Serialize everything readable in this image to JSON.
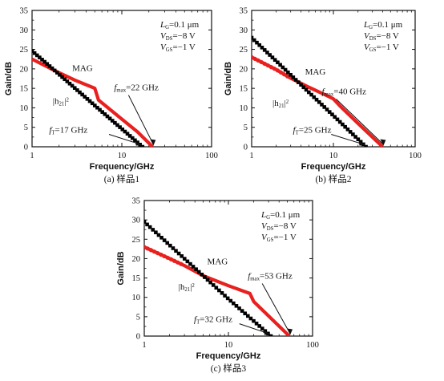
{
  "figure": {
    "subplot_count": 3,
    "series_colors": {
      "MAG": "#e8201e",
      "h21": "#000000"
    }
  },
  "chart_data": [
    {
      "type": "scatter",
      "caption": "(a) 样品1",
      "xlabel": "Frequency/GHz",
      "ylabel": "Gain/dB",
      "x_scale": "log",
      "xlim": [
        1,
        100
      ],
      "ylim": [
        0,
        35
      ],
      "x_ticks": [
        "1",
        "10",
        "100"
      ],
      "y_ticks": [
        "0",
        "5",
        "10",
        "15",
        "20",
        "25",
        "30",
        "35"
      ],
      "conditions": [
        "L_G=0.1 μm",
        "V_DS=−8 V",
        "V_GS=−1 V"
      ],
      "annotations": {
        "mag_label": "MAG",
        "h21_label": "|h21|²",
        "fmax": "f_max=22 GHz",
        "ft": "f_T=17 GHz"
      },
      "series": [
        {
          "name": "MAG",
          "color": "#e8201e",
          "style": "line",
          "x": [
            1,
            2,
            3,
            5,
            5.5,
            10,
            15,
            22
          ],
          "y": [
            22.5,
            19.0,
            17.1,
            15.0,
            12.0,
            7.1,
            3.8,
            0.0
          ]
        },
        {
          "name": "|h21|²",
          "color": "#000000",
          "style": "markers",
          "x": [
            1,
            2,
            5,
            10,
            17
          ],
          "y": [
            24.6,
            18.6,
            10.6,
            4.6,
            0.0
          ]
        }
      ]
    },
    {
      "type": "scatter",
      "caption": "(b) 样品2",
      "xlabel": "Frequency/GHz",
      "ylabel": "Gain/dB",
      "x_scale": "log",
      "xlim": [
        1,
        100
      ],
      "ylim": [
        0,
        35
      ],
      "x_ticks": [
        "1",
        "10",
        "100"
      ],
      "y_ticks": [
        "0",
        "5",
        "10",
        "15",
        "20",
        "25",
        "30",
        "35"
      ],
      "conditions": [
        "L_G=0.1 μm",
        "V_DS=−8 V",
        "V_GS=−1 V"
      ],
      "annotations": {
        "mag_label": "MAG",
        "h21_label": "|h21|²",
        "fmax": "f_max=40 GHz",
        "ft": "f_T=25 GHz"
      },
      "series": [
        {
          "name": "MAG",
          "color": "#e8201e",
          "style": "line",
          "x": [
            1,
            2,
            3,
            5,
            8,
            10,
            12,
            20,
            40
          ],
          "y": [
            23.0,
            19.8,
            17.6,
            15.3,
            13.3,
            12.3,
            10.5,
            6.0,
            0.0
          ]
        },
        {
          "name": "|h21|²",
          "color": "#000000",
          "style": "markers",
          "x": [
            1,
            2,
            5,
            10,
            25
          ],
          "y": [
            28.0,
            22.0,
            14.0,
            8.0,
            0.0
          ]
        }
      ]
    },
    {
      "type": "scatter",
      "caption": "(c) 样品3",
      "xlabel": "Frequency/GHz",
      "ylabel": "Gain/dB",
      "x_scale": "log",
      "xlim": [
        1,
        100
      ],
      "ylim": [
        0,
        35
      ],
      "x_ticks": [
        "1",
        "10",
        "100"
      ],
      "y_ticks": [
        "0",
        "5",
        "10",
        "15",
        "20",
        "25",
        "30",
        "35"
      ],
      "conditions": [
        "L_G=0.1 μm",
        "V_DS=−8 V",
        "V_GS=−1 V"
      ],
      "annotations": {
        "mag_label": "MAG",
        "h21_label": "|h21|²",
        "fmax": "f_max=53 GHz",
        "ft": "f_T=32 GHz"
      },
      "series": [
        {
          "name": "MAG",
          "color": "#e8201e",
          "style": "line",
          "x": [
            1,
            2,
            3,
            5,
            10,
            18,
            20,
            53
          ],
          "y": [
            23.0,
            20.0,
            18.2,
            15.6,
            13.0,
            11.0,
            8.9,
            0.0
          ]
        },
        {
          "name": "|h21|²",
          "color": "#000000",
          "style": "markers",
          "x": [
            1,
            2,
            5,
            10,
            32
          ],
          "y": [
            29.5,
            23.5,
            15.6,
            9.6,
            0.0
          ]
        }
      ]
    }
  ]
}
